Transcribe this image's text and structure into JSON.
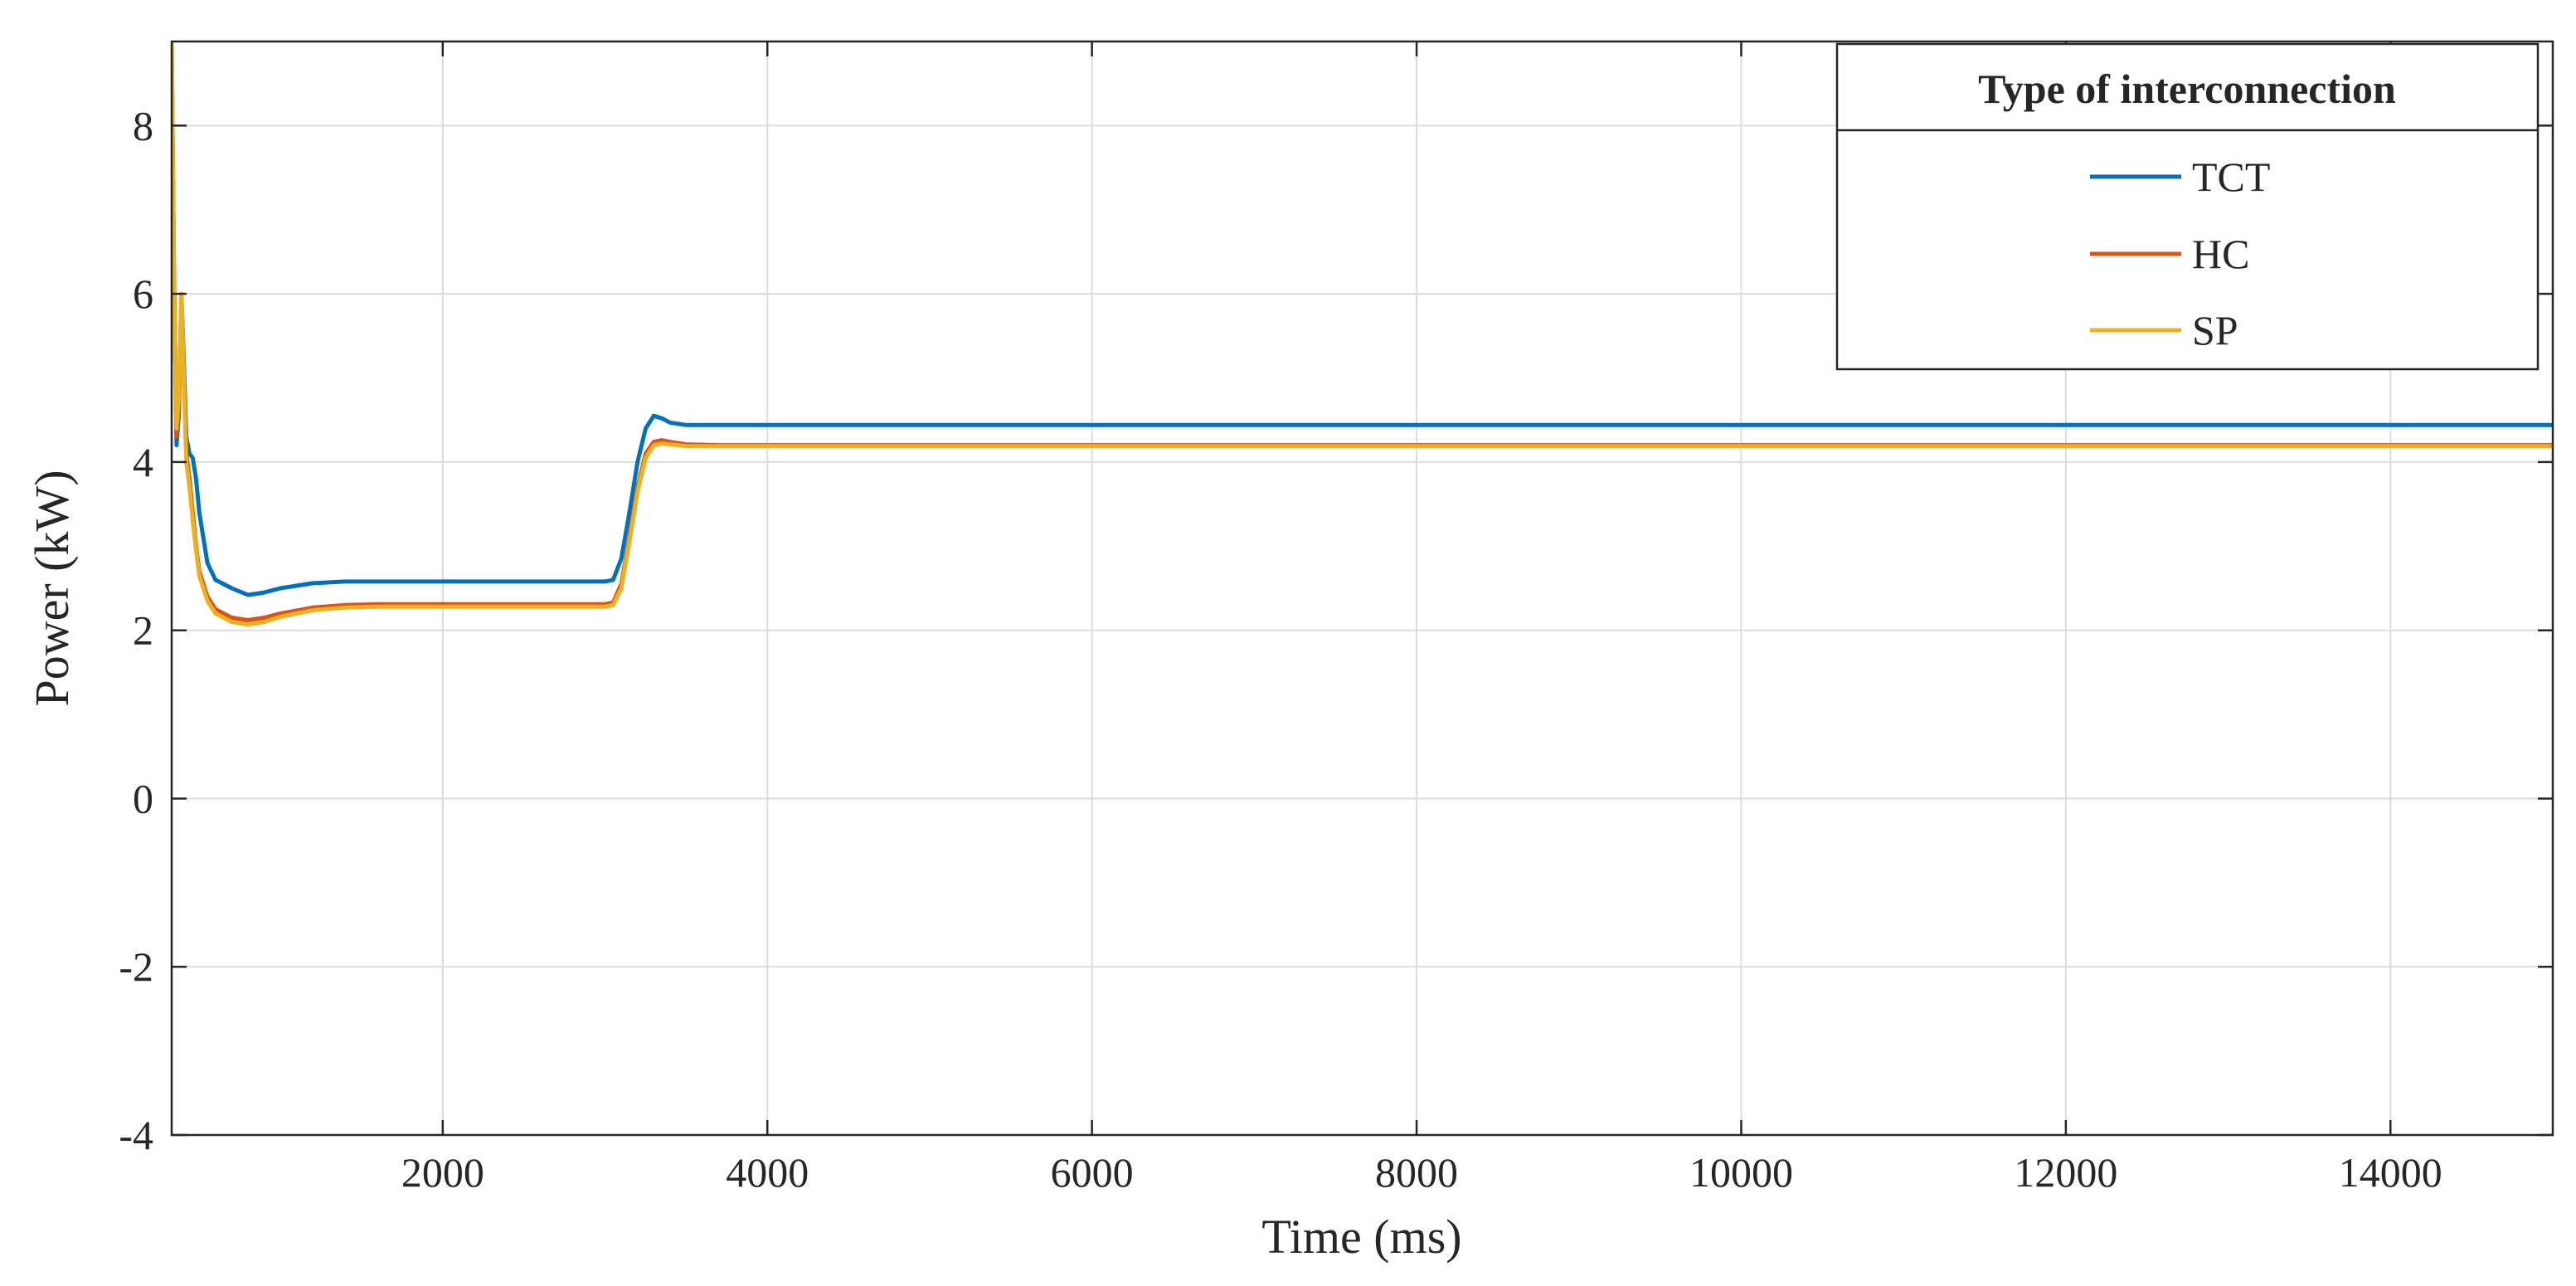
{
  "chart_data": {
    "type": "line",
    "title": "",
    "xlabel": "Time (ms)",
    "ylabel": "Power (kW)",
    "xlim": [
      330,
      15000
    ],
    "ylim": [
      -4,
      9
    ],
    "xticks": [
      2000,
      4000,
      6000,
      8000,
      10000,
      12000,
      14000
    ],
    "yticks": [
      -4,
      -2,
      0,
      2,
      4,
      6,
      8
    ],
    "grid": true,
    "legend": {
      "title": "Type of interconnection",
      "position": "top-right",
      "entries": [
        "TCT",
        "HC",
        "SP"
      ]
    },
    "series": [
      {
        "name": "TCT",
        "color": "#0072BD",
        "x": [
          330,
          345,
          360,
          375,
          390,
          405,
          420,
          440,
          460,
          480,
          500,
          550,
          600,
          700,
          800,
          900,
          1000,
          1200,
          1400,
          1600,
          2000,
          2500,
          3000,
          3050,
          3100,
          3150,
          3200,
          3250,
          3300,
          3350,
          3400,
          3500,
          3700,
          4000,
          15000
        ],
        "values": [
          9.0,
          6.2,
          4.2,
          4.6,
          6.0,
          5.2,
          4.3,
          4.1,
          4.05,
          3.8,
          3.4,
          2.8,
          2.6,
          2.5,
          2.42,
          2.45,
          2.5,
          2.56,
          2.58,
          2.58,
          2.58,
          2.58,
          2.58,
          2.6,
          2.85,
          3.4,
          4.0,
          4.4,
          4.55,
          4.52,
          4.47,
          4.44,
          4.44,
          4.44,
          4.44
        ]
      },
      {
        "name": "HC",
        "color": "#D95319",
        "x": [
          330,
          345,
          360,
          375,
          390,
          405,
          420,
          440,
          460,
          480,
          500,
          550,
          600,
          700,
          800,
          900,
          1000,
          1200,
          1400,
          1600,
          2000,
          2500,
          3000,
          3050,
          3100,
          3150,
          3200,
          3250,
          3300,
          3350,
          3400,
          3500,
          3700,
          4000,
          15000
        ],
        "values": [
          9.0,
          6.1,
          4.3,
          4.7,
          5.9,
          5.0,
          4.1,
          3.8,
          3.4,
          3.0,
          2.7,
          2.4,
          2.25,
          2.15,
          2.12,
          2.15,
          2.2,
          2.27,
          2.3,
          2.31,
          2.31,
          2.31,
          2.31,
          2.33,
          2.55,
          3.1,
          3.7,
          4.1,
          4.24,
          4.26,
          4.24,
          4.21,
          4.2,
          4.2,
          4.2
        ]
      },
      {
        "name": "SP",
        "color": "#EDB120",
        "x": [
          330,
          345,
          360,
          375,
          390,
          405,
          420,
          440,
          460,
          480,
          500,
          550,
          600,
          700,
          800,
          900,
          1000,
          1200,
          1400,
          1600,
          2000,
          2500,
          3000,
          3050,
          3100,
          3150,
          3200,
          3250,
          3300,
          3350,
          3400,
          3500,
          3700,
          4000,
          15000
        ],
        "values": [
          9.0,
          6.0,
          4.4,
          4.8,
          6.0,
          5.0,
          4.0,
          3.7,
          3.3,
          2.95,
          2.65,
          2.35,
          2.2,
          2.1,
          2.07,
          2.1,
          2.16,
          2.24,
          2.27,
          2.28,
          2.28,
          2.28,
          2.28,
          2.3,
          2.5,
          3.05,
          3.65,
          4.05,
          4.2,
          4.22,
          4.21,
          4.19,
          4.19,
          4.19,
          4.19
        ]
      }
    ]
  }
}
